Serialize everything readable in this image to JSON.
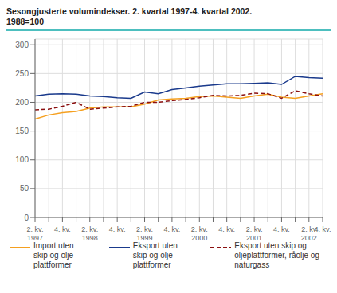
{
  "chart_data": {
    "type": "line",
    "title": "Sesongjusterte volumindekser. 2. kvartal 1997-4. kvartal 2002.",
    "subtitle": "1988=100",
    "categories": [
      "2. kv.\n1997",
      null,
      "4. kv.",
      null,
      "2. kv.\n1998",
      null,
      "4. kv.",
      null,
      "2. kv.\n1999",
      null,
      "4. kv.",
      null,
      "2. kv.\n2000",
      null,
      "4. kv.",
      null,
      "2. kv.\n2001",
      null,
      "4. kv.",
      null,
      "2. kv\n2002",
      "4. kv."
    ],
    "series": [
      {
        "name": "Import uten\nskip og olje-\nplattformer",
        "color": "#f5a020",
        "line_style": "solid",
        "values": [
          171,
          178,
          182,
          184,
          190,
          192,
          192,
          192,
          197,
          204,
          206,
          207,
          210,
          211,
          209,
          207,
          211,
          214,
          209,
          207,
          211,
          215
        ]
      },
      {
        "name": "Eksport uten\nskip og olje-\nplattformer",
        "color": "#1a3a8c",
        "line_style": "solid",
        "values": [
          211,
          214,
          215,
          214,
          211,
          210,
          208,
          207,
          218,
          215,
          222,
          225,
          228,
          230,
          232,
          232,
          233,
          234,
          231,
          245,
          243,
          242
        ]
      },
      {
        "name": "Eksport uten skip og\noljeplattformer, råolje og\nnaturgass",
        "color": "#8b1010",
        "line_style": "dashed",
        "values": [
          187,
          188,
          193,
          200,
          188,
          190,
          192,
          193,
          200,
          200,
          203,
          205,
          208,
          212,
          211,
          212,
          216,
          215,
          207,
          220,
          215,
          211
        ]
      }
    ],
    "ylim": [
      0,
      310
    ],
    "yticks": [
      0,
      50,
      100,
      150,
      200,
      250,
      300
    ],
    "grid": true,
    "legend": "bottom"
  }
}
